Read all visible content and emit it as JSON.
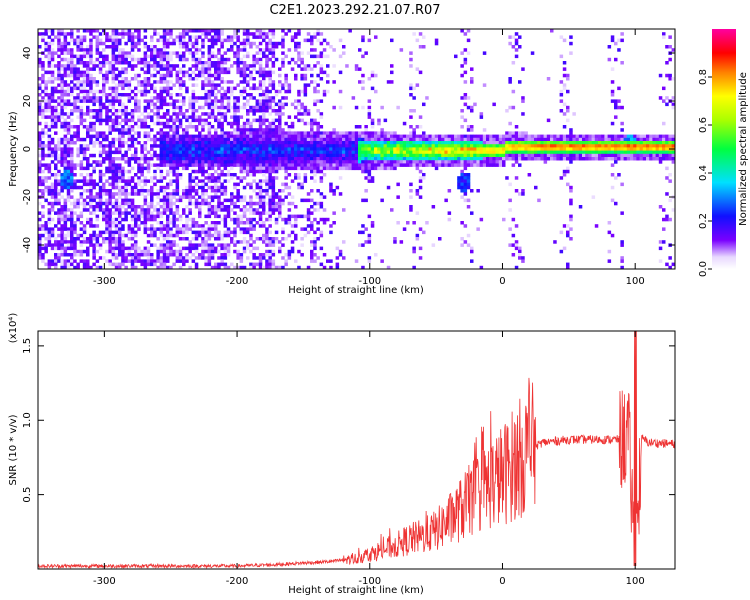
{
  "title": "C2E1.2023.292.21.07.R07",
  "colors": {
    "snr_line": "#ee3333",
    "axis": "#000000",
    "spec_bg": "#ffffff"
  },
  "chart_data": [
    {
      "type": "heatmap",
      "xlabel": "Height of straight line (km)",
      "ylabel": "Frequency (Hz)",
      "xlim": [
        -350,
        130
      ],
      "ylim": [
        -50,
        50
      ],
      "xticks": [
        -300,
        -200,
        -100,
        0,
        100
      ],
      "xtick_labels": [
        "-300",
        "-200",
        "-100",
        "0",
        "100"
      ],
      "yticks": [
        -40,
        -20,
        0,
        20,
        40
      ],
      "ytick_labels": [
        "-40",
        "-20",
        "0",
        "20",
        "40"
      ],
      "colormap": "rainbow (white→purple→blue→cyan→green→yellow→red→magenta)",
      "colorbar": {
        "label": "Normalized spectral amplitude",
        "range": [
          0,
          1
        ],
        "ticks": [
          0.0,
          0.2,
          0.4,
          0.6,
          0.8
        ],
        "tick_labels": [
          "0.0",
          "0.2",
          "0.4",
          "0.6",
          "0.8"
        ]
      },
      "features": [
        {
          "note": "broadband noise, high density",
          "x_range": [
            -350,
            -170
          ],
          "freq_range": [
            -50,
            50
          ],
          "amplitude": 0.25
        },
        {
          "note": "signal band around 0 Hz",
          "x_range": [
            -250,
            130
          ],
          "center_freq": 0,
          "amplitude_start": 0.3,
          "amplitude_end": 1.0
        },
        {
          "note": "isolated blob",
          "x": -330,
          "freq": -12,
          "amplitude": 0.3
        },
        {
          "note": "isolated blob",
          "x": -30,
          "freq": -13,
          "amplitude": 0.25
        },
        {
          "note": "burst",
          "x": 95,
          "freq": 3,
          "amplitude": 0.35
        }
      ]
    },
    {
      "type": "line",
      "xlabel": "Height of straight line (km)",
      "ylabel": "SNR (10 * v/v)",
      "y_multiplier": "(x10⁴)",
      "xlim": [
        -350,
        130
      ],
      "ylim": [
        0,
        1.6
      ],
      "xticks": [
        -300,
        -200,
        -100,
        0,
        100
      ],
      "xtick_labels": [
        "-300",
        "-200",
        "-100",
        "0",
        "100"
      ],
      "yticks": [
        0.5,
        1.0,
        1.5
      ],
      "ytick_labels": [
        "0.5",
        "1.0",
        "1.5"
      ],
      "series": [
        {
          "x": [
            -350,
            -300,
            -250,
            -200,
            -170,
            -150,
            -130,
            -110,
            -100,
            -90,
            -80,
            -70,
            -60,
            -50,
            -40,
            -30,
            -20,
            -10,
            0,
            10,
            20,
            30,
            50,
            70,
            90,
            95,
            100,
            105,
            110,
            130
          ],
          "y": [
            0.02,
            0.02,
            0.02,
            0.02,
            0.03,
            0.04,
            0.05,
            0.07,
            0.1,
            0.13,
            0.16,
            0.2,
            0.22,
            0.26,
            0.33,
            0.41,
            0.5,
            0.57,
            0.63,
            0.72,
            0.8,
            0.85,
            0.87,
            0.87,
            0.87,
            0.9,
            0.02,
            0.88,
            0.85,
            0.84
          ]
        }
      ]
    }
  ]
}
